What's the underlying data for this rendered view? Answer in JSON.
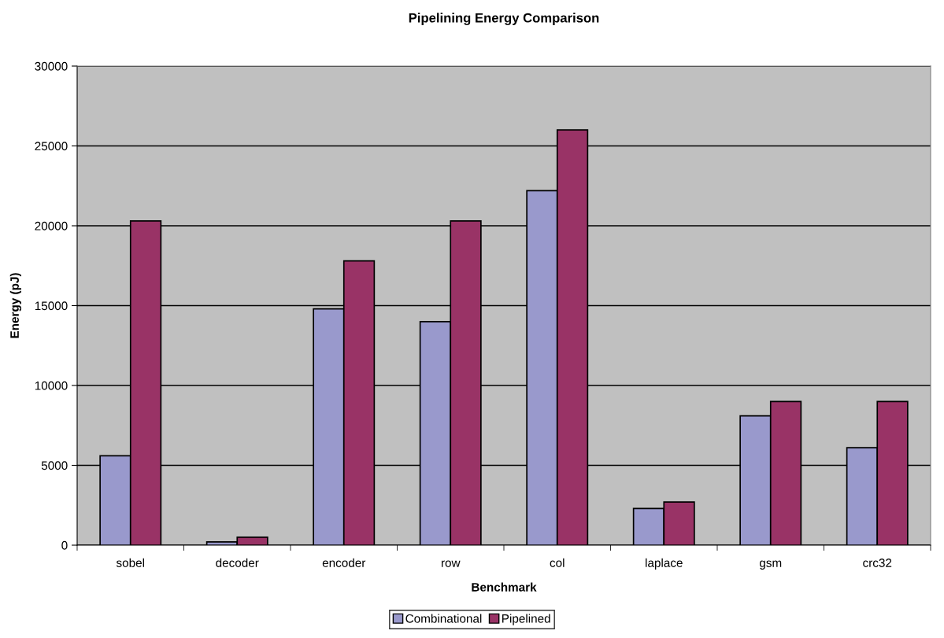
{
  "chart_data": {
    "type": "bar",
    "title": "Pipelining Energy Comparison",
    "xlabel": "Benchmark",
    "ylabel": "Energy (pJ)",
    "categories": [
      "sobel",
      "decoder",
      "encoder",
      "row",
      "col",
      "laplace",
      "gsm",
      "crc32"
    ],
    "series": [
      {
        "name": "Combinational",
        "color": "#9999cc",
        "values": [
          5600,
          200,
          14800,
          14000,
          22200,
          2300,
          8100,
          6100
        ]
      },
      {
        "name": "Pipelined",
        "color": "#993366",
        "values": [
          20300,
          500,
          17800,
          20300,
          26000,
          2700,
          9000,
          9000
        ]
      }
    ],
    "ylim": [
      0,
      30000
    ],
    "yticks": [
      0,
      5000,
      10000,
      15000,
      20000,
      25000,
      30000
    ],
    "grid": "y",
    "legend": "bottom"
  }
}
